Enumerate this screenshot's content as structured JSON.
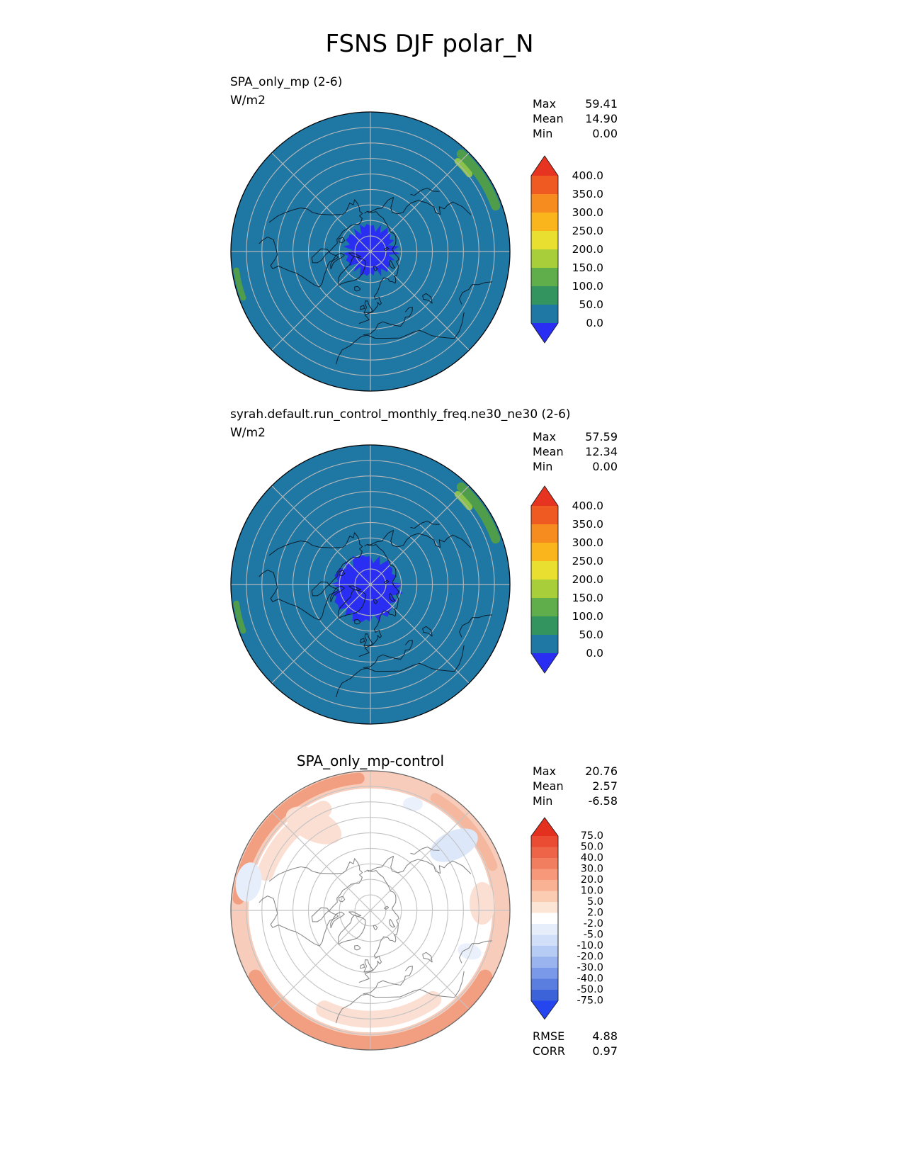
{
  "title": "FSNS DJF polar_N",
  "panels": [
    {
      "label": "SPA_only_mp (2-6)",
      "units": "W/m2",
      "stats": [
        {
          "name": "Max",
          "value": "59.41"
        },
        {
          "name": "Mean",
          "value": "14.90"
        },
        {
          "name": "Min",
          "value": "0.00"
        }
      ],
      "colorbar": {
        "tick_labels": [
          "400.0",
          "350.0",
          "300.0",
          "250.0",
          "200.0",
          "150.0",
          "100.0",
          "50.0",
          "0.0"
        ],
        "arrow_top_color": "#e63420",
        "arrow_bottom_color": "#2a2ef2",
        "segment_colors": [
          "#ef5a22",
          "#f68c1f",
          "#fab41c",
          "#e9df30",
          "#a8cf39",
          "#5fae4b",
          "#33945f",
          "#1f77a4"
        ]
      },
      "map": {
        "base_color": "#1f77a4",
        "polar_night_color": "#2a2ef2",
        "coast_color": "#0d1f2d",
        "graticule_color": "#b2b6b8",
        "rim_patch_colors": [
          "#4f9d4b",
          "#8bc34a"
        ]
      }
    },
    {
      "label": "syrah.default.run_control_monthly_freq.ne30_ne30 (2-6)",
      "units": "W/m2",
      "stats": [
        {
          "name": "Max",
          "value": "57.59"
        },
        {
          "name": "Mean",
          "value": "12.34"
        },
        {
          "name": "Min",
          "value": "0.00"
        }
      ],
      "colorbar": {
        "tick_labels": [
          "400.0",
          "350.0",
          "300.0",
          "250.0",
          "200.0",
          "150.0",
          "100.0",
          "50.0",
          "0.0"
        ],
        "arrow_top_color": "#e63420",
        "arrow_bottom_color": "#2a2ef2",
        "segment_colors": [
          "#ef5a22",
          "#f68c1f",
          "#fab41c",
          "#e9df30",
          "#a8cf39",
          "#5fae4b",
          "#33945f",
          "#1f77a4"
        ]
      },
      "map": {
        "base_color": "#1f77a4",
        "polar_night_color": "#2a2ef2",
        "coast_color": "#0d1f2d",
        "graticule_color": "#b2b6b8",
        "rim_patch_colors": [
          "#4f9d4b",
          "#8bc34a"
        ]
      }
    },
    {
      "label": "SPA_only_mp-control",
      "stats": [
        {
          "name": "Max",
          "value": "20.76"
        },
        {
          "name": "Mean",
          "value": "2.57"
        },
        {
          "name": "Min",
          "value": "-6.58"
        }
      ],
      "extra_stats": [
        {
          "name": "RMSE",
          "value": "4.88"
        },
        {
          "name": "CORR",
          "value": "0.97"
        }
      ],
      "colorbar": {
        "tick_labels": [
          "75.0",
          "50.0",
          "40.0",
          "30.0",
          "20.0",
          "10.0",
          "5.0",
          "2.0",
          "-2.0",
          "-5.0",
          "-10.0",
          "-20.0",
          "-30.0",
          "-40.0",
          "-50.0",
          "-75.0"
        ],
        "arrow_top_color": "#e3301f",
        "arrow_bottom_color": "#2545ee",
        "segment_colors": [
          "#e94b33",
          "#ee6449",
          "#f27e60",
          "#f69879",
          "#f9b294",
          "#fbccb2",
          "#fde5d6",
          "#ffffff",
          "#e6eefb",
          "#d1e0f8",
          "#b7ccf4",
          "#99b4ee",
          "#7a99e8",
          "#5a7ee0",
          "#3c63d8"
        ]
      },
      "map": {
        "base_color": "#ffffff",
        "coast_color": "#8a8a8a",
        "graticule_color": "#c4c4c4",
        "rim_band_color": "#f8ccba",
        "rim_strong_color": "#f29e80",
        "rim_mid_color": "#f6b79f",
        "inner_pink_color": "#fcdfd3",
        "neg_patch_colors": [
          "#dce8fa",
          "#e6eefb",
          "#eaf1fc"
        ]
      }
    }
  ],
  "chart_data": [
    {
      "type": "heatmap",
      "subtype": "north_polar_contour_map",
      "title": "SPA_only_mp (2-6)",
      "variable": "FSNS",
      "season": "DJF",
      "region": "polar_N",
      "units": "W/m2",
      "contour_levels": [
        0.0,
        50.0,
        100.0,
        150.0,
        200.0,
        250.0,
        300.0,
        350.0,
        400.0
      ],
      "stats": {
        "max": 59.41,
        "mean": 14.9,
        "min": 0.0
      },
      "field_description": "Nearly the whole northern polar cap is in the 0-50 W/m2 bin (teal); an irregular 0 W/m2 polar-night patch (blue) sits over the pole; small 50-150 W/m2 green patches touch the rim near the upper right."
    },
    {
      "type": "heatmap",
      "subtype": "north_polar_contour_map",
      "title": "syrah.default.run_control_monthly_freq.ne30_ne30 (2-6)",
      "variable": "FSNS",
      "season": "DJF",
      "region": "polar_N",
      "units": "W/m2",
      "contour_levels": [
        0.0,
        50.0,
        100.0,
        150.0,
        200.0,
        250.0,
        300.0,
        350.0,
        400.0
      ],
      "stats": {
        "max": 57.59,
        "mean": 12.34,
        "min": 0.0
      },
      "field_description": "Same pattern as the case above: 0-50 W/m2 (teal) over the cap with a slightly larger blue polar-night region of 0 W/m2 around the pole, offset slightly from center."
    },
    {
      "type": "heatmap",
      "subtype": "north_polar_contour_map",
      "title": "SPA_only_mp-control",
      "variable": "FSNS",
      "season": "DJF",
      "region": "polar_N",
      "units": "W/m2",
      "contour_levels": [
        -75.0,
        -50.0,
        -40.0,
        -30.0,
        -20.0,
        -10.0,
        -5.0,
        -2.0,
        2.0,
        5.0,
        10.0,
        20.0,
        30.0,
        40.0,
        50.0,
        75.0
      ],
      "stats": {
        "max": 20.76,
        "mean": 2.57,
        "min": -6.58,
        "rmse": 4.88,
        "corr": 0.97
      },
      "field_description": "Difference map: near zero (white) over most of the cap, a ring of positive differences of 2-20 W/m2 (pink/red) near the equatorward rim, strongest at bottom and upper left, with a few small -2 to -10 W/m2 patches (light blue)."
    }
  ]
}
